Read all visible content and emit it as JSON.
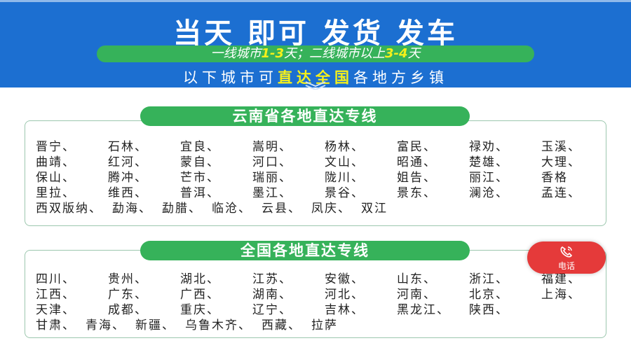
{
  "header": {
    "title": "当天 即可 发货 发车",
    "delivery": {
      "part1": "一线城市",
      "days1": "1-3",
      "part2": "天；二线城市以上",
      "days2": "3-4",
      "part3": "天"
    },
    "subtitle": {
      "pre": "以下城市可",
      "highlight": "直达全国",
      "post": "各地方乡镇"
    }
  },
  "colors": {
    "blue": "#1c6fd1",
    "green": "#36b25a",
    "yellow": "#f5f01a",
    "red": "#e53a3a"
  },
  "yunnan": {
    "title": "云南省各地直达专线",
    "rows": [
      [
        "晋宁、",
        "石林、",
        "宜良、",
        "嵩明、",
        "杨林、",
        "富民、",
        "禄劝、",
        "玉溪、"
      ],
      [
        "曲靖、",
        "红河、",
        "蒙自、",
        "河口、",
        "文山、",
        "昭通、",
        "楚雄、",
        "大理、"
      ],
      [
        "保山、",
        "腾冲、",
        "芒市、",
        "瑞丽、",
        "陇川、",
        "姐告、",
        "丽江、",
        "香格"
      ],
      [
        "里拉、",
        "维西、",
        "普洱、",
        "墨江、",
        "景谷、",
        "景东、",
        "澜沧、",
        "孟连、"
      ],
      [
        "西双版纳、",
        "勐海、",
        "勐腊、",
        "临沧、",
        "云县、",
        "凤庆、",
        "双江"
      ]
    ]
  },
  "national": {
    "title": "全国各地直达专线",
    "rows": [
      [
        "四川、",
        "贵州、",
        "湖北、",
        "江苏、",
        "安徽、",
        "山东、",
        "浙江、",
        "福建、"
      ],
      [
        "江西、",
        "广东、",
        "广西、",
        "湖南、",
        "河北、",
        "河南、",
        "北京、",
        "上海、"
      ],
      [
        "天津、",
        "成都、",
        "重庆、",
        "辽宁、",
        "吉林、",
        "黑龙江、",
        "陕西、"
      ],
      [
        "甘肃、",
        "青海、",
        "新疆、",
        "乌鲁木齐、",
        "西藏、",
        "拉萨"
      ]
    ]
  },
  "phone_button": {
    "label": "电话",
    "icon": "phone-icon"
  }
}
